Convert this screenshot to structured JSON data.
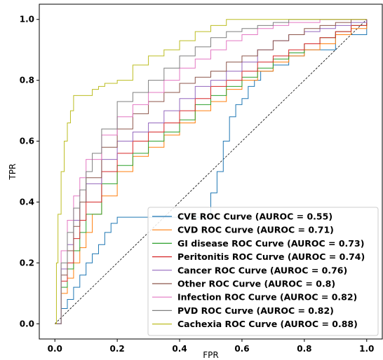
{
  "chart_data": {
    "type": "line",
    "title": "",
    "xlabel": "FPR",
    "ylabel": "TPR",
    "xlim": [
      -0.05,
      1.05
    ],
    "ylim": [
      -0.05,
      1.05
    ],
    "xticks": [
      "0.0",
      "0.2",
      "0.4",
      "0.6",
      "0.8",
      "1.0"
    ],
    "yticks": [
      "0.0",
      "0.2",
      "0.4",
      "0.6",
      "0.8",
      "1.0"
    ],
    "grid": false,
    "legend_position": "lower-right",
    "diagonal": {
      "style": "dashed",
      "color": "#000000"
    },
    "series": [
      {
        "name": "CVE ROC Curve (AUROC = 0.55)",
        "color": "#1f77b4",
        "x": [
          0,
          0.02,
          0.04,
          0.06,
          0.08,
          0.1,
          0.12,
          0.14,
          0.16,
          0.18,
          0.2,
          0.25,
          0.3,
          0.35,
          0.4,
          0.45,
          0.5,
          0.52,
          0.54,
          0.56,
          0.58,
          0.6,
          0.62,
          0.64,
          0.66,
          0.7,
          0.75,
          0.8,
          0.9,
          1.0
        ],
        "y": [
          0,
          0.05,
          0.08,
          0.12,
          0.16,
          0.2,
          0.23,
          0.26,
          0.3,
          0.33,
          0.35,
          0.35,
          0.35,
          0.35,
          0.35,
          0.35,
          0.43,
          0.5,
          0.6,
          0.68,
          0.72,
          0.74,
          0.78,
          0.8,
          0.83,
          0.85,
          0.88,
          0.9,
          0.95,
          1.0
        ]
      },
      {
        "name": "CVD ROC Curve (AUROC = 0.71)",
        "color": "#ff7f0e",
        "x": [
          0,
          0.02,
          0.04,
          0.06,
          0.08,
          0.1,
          0.12,
          0.15,
          0.2,
          0.25,
          0.3,
          0.35,
          0.4,
          0.45,
          0.5,
          0.55,
          0.6,
          0.65,
          0.7,
          0.75,
          0.8,
          0.85,
          0.9,
          0.95,
          1.0
        ],
        "y": [
          0,
          0.1,
          0.15,
          0.2,
          0.25,
          0.3,
          0.36,
          0.42,
          0.5,
          0.55,
          0.58,
          0.62,
          0.66,
          0.7,
          0.73,
          0.77,
          0.8,
          0.83,
          0.86,
          0.88,
          0.9,
          0.92,
          0.95,
          0.97,
          1.0
        ]
      },
      {
        "name": "GI disease ROC Curve (AUROC = 0.73)",
        "color": "#2ca02c",
        "x": [
          0,
          0.02,
          0.04,
          0.06,
          0.08,
          0.1,
          0.15,
          0.2,
          0.25,
          0.3,
          0.35,
          0.4,
          0.45,
          0.5,
          0.55,
          0.6,
          0.65,
          0.7,
          0.75,
          0.8,
          0.85,
          0.9,
          0.95,
          1.0
        ],
        "y": [
          0,
          0.12,
          0.18,
          0.24,
          0.3,
          0.36,
          0.46,
          0.52,
          0.56,
          0.6,
          0.63,
          0.67,
          0.72,
          0.75,
          0.78,
          0.81,
          0.84,
          0.87,
          0.89,
          0.92,
          0.94,
          0.96,
          0.98,
          1.0
        ]
      },
      {
        "name": "Peritonitis ROC Curve (AUROC = 0.74)",
        "color": "#d62728",
        "x": [
          0,
          0.02,
          0.04,
          0.06,
          0.08,
          0.1,
          0.15,
          0.2,
          0.25,
          0.3,
          0.35,
          0.4,
          0.45,
          0.5,
          0.55,
          0.6,
          0.65,
          0.7,
          0.75,
          0.8,
          0.85,
          0.9,
          0.95,
          1.0
        ],
        "y": [
          0,
          0.14,
          0.2,
          0.28,
          0.34,
          0.4,
          0.5,
          0.56,
          0.6,
          0.63,
          0.66,
          0.7,
          0.74,
          0.78,
          0.8,
          0.83,
          0.86,
          0.88,
          0.9,
          0.92,
          0.94,
          0.96,
          0.98,
          1.0
        ]
      },
      {
        "name": "Cancer ROC Curve (AUROC = 0.76)",
        "color": "#9467bd",
        "x": [
          0,
          0.02,
          0.04,
          0.06,
          0.08,
          0.1,
          0.15,
          0.2,
          0.25,
          0.3,
          0.35,
          0.4,
          0.45,
          0.5,
          0.55,
          0.6,
          0.65,
          0.7,
          0.75,
          0.8,
          0.85,
          0.9,
          0.95,
          1.0
        ],
        "y": [
          0,
          0.18,
          0.26,
          0.34,
          0.4,
          0.46,
          0.54,
          0.6,
          0.63,
          0.66,
          0.7,
          0.74,
          0.78,
          0.8,
          0.83,
          0.86,
          0.9,
          0.93,
          0.95,
          0.96,
          0.97,
          0.98,
          0.99,
          1.0
        ]
      },
      {
        "name": "Other ROC Curve (AUROC = 0.8)",
        "color": "#8c564b",
        "x": [
          0,
          0.02,
          0.04,
          0.06,
          0.08,
          0.1,
          0.15,
          0.2,
          0.25,
          0.3,
          0.35,
          0.4,
          0.45,
          0.5,
          0.55,
          0.6,
          0.65,
          0.7,
          0.75,
          0.8,
          0.85,
          0.9,
          0.95,
          1.0
        ],
        "y": [
          0,
          0.16,
          0.24,
          0.32,
          0.4,
          0.48,
          0.58,
          0.64,
          0.69,
          0.73,
          0.76,
          0.79,
          0.81,
          0.83,
          0.86,
          0.88,
          0.9,
          0.93,
          0.95,
          0.97,
          0.98,
          0.99,
          1.0,
          1.0
        ]
      },
      {
        "name": "Infection ROC Curve (AUROC = 0.82)",
        "color": "#e377c2",
        "x": [
          0,
          0.02,
          0.04,
          0.06,
          0.08,
          0.1,
          0.15,
          0.2,
          0.25,
          0.3,
          0.35,
          0.4,
          0.45,
          0.5,
          0.55,
          0.6,
          0.65,
          0.7,
          0.75,
          0.8,
          0.85,
          0.9,
          0.95,
          1.0
        ],
        "y": [
          0,
          0.24,
          0.34,
          0.42,
          0.48,
          0.54,
          0.62,
          0.68,
          0.72,
          0.76,
          0.8,
          0.84,
          0.87,
          0.9,
          0.93,
          0.95,
          0.97,
          0.98,
          0.99,
          0.99,
          1.0,
          1.0,
          1.0,
          1.0
        ]
      },
      {
        "name": "PVD ROC Curve (AUROC = 0.82)",
        "color": "#7f7f7f",
        "x": [
          0,
          0.02,
          0.04,
          0.06,
          0.08,
          0.1,
          0.12,
          0.15,
          0.2,
          0.25,
          0.3,
          0.35,
          0.4,
          0.45,
          0.5,
          0.55,
          0.6,
          0.65,
          0.7,
          0.75,
          0.8,
          0.9,
          1.0
        ],
        "y": [
          0,
          0.2,
          0.3,
          0.38,
          0.44,
          0.5,
          0.56,
          0.64,
          0.73,
          0.76,
          0.8,
          0.84,
          0.88,
          0.91,
          0.94,
          0.96,
          0.97,
          0.98,
          0.99,
          1.0,
          1.0,
          1.0,
          1.0
        ]
      },
      {
        "name": "Cachexia ROC Curve (AUROC = 0.88)",
        "color": "#bcbd22",
        "x": [
          0,
          0.005,
          0.01,
          0.02,
          0.03,
          0.04,
          0.05,
          0.06,
          0.08,
          0.1,
          0.12,
          0.14,
          0.16,
          0.18,
          0.2,
          0.25,
          0.3,
          0.35,
          0.4,
          0.45,
          0.5,
          0.55,
          0.6,
          0.7,
          0.8,
          0.9,
          1.0
        ],
        "y": [
          0,
          0.2,
          0.36,
          0.5,
          0.6,
          0.66,
          0.7,
          0.75,
          0.75,
          0.75,
          0.77,
          0.78,
          0.79,
          0.79,
          0.8,
          0.85,
          0.88,
          0.9,
          0.93,
          0.96,
          0.98,
          1.0,
          1.0,
          1.0,
          1.0,
          1.0,
          1.0
        ]
      }
    ]
  }
}
